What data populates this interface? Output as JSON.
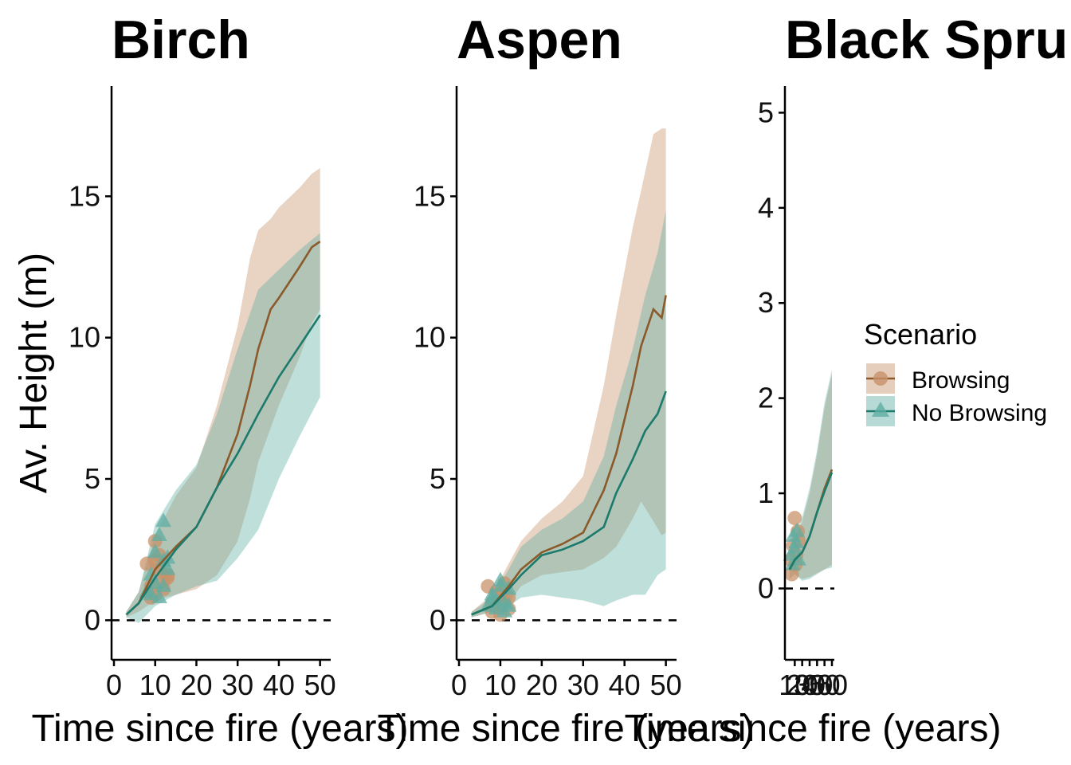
{
  "colors": {
    "browsing": "#8B5A2B",
    "browsing_fill": "#C8926A",
    "no_browsing": "#1B7A6B",
    "no_browsing_fill": "#5FAEA3"
  },
  "y_axis_title": "Av. Height (m)",
  "legend": {
    "title": "Scenario",
    "items": [
      {
        "label": "Browsing",
        "series": "browsing",
        "marker": "circle"
      },
      {
        "label": "No Browsing",
        "series": "no_browsing",
        "marker": "triangle"
      }
    ]
  },
  "chart_data": [
    {
      "type": "line",
      "title": "Birch",
      "xlabel": "Time since fire (years)",
      "ylabel": "Av. Height (m)",
      "xlim": [
        0,
        52
      ],
      "ylim": [
        -1.4,
        18.9
      ],
      "xticks": [
        0,
        10,
        20,
        30,
        40,
        50
      ],
      "yticks": [
        0,
        5,
        10,
        15
      ],
      "reference_line": 0,
      "series": [
        {
          "name": "Browsing",
          "x": [
            3,
            6,
            10,
            15,
            20,
            25,
            30,
            33,
            35,
            38,
            40,
            45,
            48,
            50
          ],
          "y": [
            0.2,
            0.6,
            1.8,
            2.6,
            3.3,
            4.7,
            6.6,
            8.3,
            9.6,
            11.0,
            11.4,
            12.5,
            13.2,
            13.4
          ],
          "lower": [
            0.1,
            0.3,
            0.7,
            0.9,
            1.1,
            1.6,
            2.8,
            4.3,
            5.6,
            6.8,
            7.6,
            9.3,
            10.5,
            11.0
          ],
          "upper": [
            0.3,
            1.0,
            3.0,
            4.4,
            5.4,
            7.6,
            10.4,
            12.8,
            13.8,
            14.2,
            14.6,
            15.3,
            15.8,
            16.0
          ]
        },
        {
          "name": "No Browsing",
          "x": [
            3,
            6,
            10,
            15,
            20,
            25,
            30,
            35,
            40,
            45,
            50
          ],
          "y": [
            0.2,
            0.6,
            1.5,
            2.5,
            3.3,
            4.7,
            5.9,
            7.3,
            8.6,
            9.7,
            10.8
          ],
          "lower": [
            0.1,
            -0.1,
            0.5,
            0.9,
            1.2,
            1.4,
            2.2,
            3.2,
            5.0,
            6.5,
            7.9
          ],
          "upper": [
            0.3,
            1.0,
            3.4,
            4.6,
            5.5,
            7.3,
            9.6,
            11.7,
            12.4,
            13.1,
            13.7
          ]
        }
      ],
      "scatter": [
        {
          "series": "Browsing",
          "x": [
            8,
            9,
            10,
            10,
            11,
            11,
            12,
            13,
            9,
            12,
            10,
            13
          ],
          "y": [
            2.0,
            1.2,
            2.8,
            0.9,
            1.8,
            2.3,
            1.4,
            1.6,
            0.8,
            1.1,
            2.1,
            1.5
          ]
        },
        {
          "series": "No Browsing",
          "x": [
            8,
            9,
            10,
            11,
            12,
            12,
            13,
            13,
            9,
            10,
            11,
            12
          ],
          "y": [
            1.0,
            1.6,
            2.4,
            3.0,
            3.5,
            2.1,
            1.8,
            2.2,
            0.9,
            1.3,
            0.8,
            1.2
          ]
        }
      ]
    },
    {
      "type": "line",
      "title": "Aspen",
      "xlabel": "Time since fire (years)",
      "xlim": [
        0,
        52
      ],
      "ylim": [
        -1.4,
        18.9
      ],
      "xticks": [
        0,
        10,
        20,
        30,
        40,
        50
      ],
      "yticks": [
        0,
        5,
        10,
        15
      ],
      "reference_line": 0,
      "series": [
        {
          "name": "Browsing",
          "x": [
            3,
            8,
            12,
            15,
            20,
            25,
            30,
            35,
            38,
            42,
            44,
            47,
            49,
            50
          ],
          "y": [
            0.2,
            0.5,
            1.2,
            1.8,
            2.4,
            2.7,
            3.1,
            4.6,
            5.9,
            8.3,
            9.7,
            11.0,
            10.7,
            11.5
          ],
          "lower": [
            0.1,
            0.3,
            0.6,
            1.2,
            1.6,
            1.7,
            1.8,
            2.2,
            2.6,
            3.6,
            4.2,
            3.5,
            3.0,
            3.1
          ],
          "upper": [
            0.3,
            0.9,
            2.0,
            2.8,
            3.6,
            4.2,
            5.1,
            8.3,
            10.8,
            13.9,
            15.2,
            17.2,
            17.4,
            17.4
          ]
        },
        {
          "name": "No Browsing",
          "x": [
            3,
            8,
            12,
            15,
            20,
            25,
            30,
            35,
            38,
            42,
            45,
            48,
            50
          ],
          "y": [
            0.2,
            0.5,
            1.1,
            1.6,
            2.3,
            2.5,
            2.8,
            3.3,
            4.5,
            5.7,
            6.7,
            7.3,
            8.1
          ],
          "lower": [
            0.1,
            0.3,
            0.5,
            0.8,
            0.9,
            0.8,
            0.7,
            0.5,
            0.7,
            0.9,
            0.9,
            1.6,
            1.8
          ],
          "upper": [
            0.3,
            0.8,
            1.8,
            2.6,
            3.2,
            3.6,
            4.2,
            5.8,
            7.6,
            9.6,
            11.5,
            13.0,
            14.5
          ]
        }
      ],
      "scatter": [
        {
          "series": "Browsing",
          "x": [
            7,
            8,
            9,
            10,
            11,
            12,
            9,
            10,
            11,
            8,
            12
          ],
          "y": [
            1.2,
            0.3,
            0.5,
            0.9,
            0.7,
            0.4,
            1.0,
            0.2,
            1.3,
            0.6,
            0.8
          ]
        },
        {
          "series": "No Browsing",
          "x": [
            7,
            8,
            9,
            10,
            11,
            12,
            9,
            10,
            11,
            8,
            12
          ],
          "y": [
            0.5,
            0.9,
            0.4,
            1.4,
            0.6,
            1.1,
            0.7,
            1.2,
            0.3,
            0.8,
            0.5
          ]
        }
      ]
    },
    {
      "type": "line",
      "title": "Black Spru",
      "xlabel": "Time since fire (years)",
      "xlim": [
        0,
        60
      ],
      "ylim": [
        -0.75,
        5.28
      ],
      "xticks": [
        10,
        20,
        30,
        40,
        50,
        60
      ],
      "xtick_labels_visible": "102030405060",
      "yticks": [
        0,
        1,
        2,
        3,
        4,
        5
      ],
      "reference_line": 0,
      "series": [
        {
          "name": "Browsing",
          "x": [
            3,
            10,
            20,
            30,
            40,
            50,
            60
          ],
          "y": [
            0.2,
            0.3,
            0.38,
            0.55,
            0.8,
            1.05,
            1.25
          ],
          "lower": [
            0.1,
            0.15,
            0.1,
            0.12,
            0.16,
            0.2,
            0.25
          ],
          "upper": [
            0.3,
            0.5,
            0.7,
            1.0,
            1.4,
            1.9,
            2.25
          ]
        },
        {
          "name": "No Browsing",
          "x": [
            3,
            10,
            20,
            30,
            40,
            50,
            60
          ],
          "y": [
            0.2,
            0.3,
            0.38,
            0.55,
            0.8,
            1.02,
            1.22
          ],
          "lower": [
            0.1,
            0.15,
            0.08,
            0.1,
            0.15,
            0.2,
            0.22
          ],
          "upper": [
            0.3,
            0.5,
            0.75,
            1.05,
            1.45,
            1.95,
            2.3
          ]
        }
      ],
      "scatter": [
        {
          "series": "Browsing",
          "x": [
            5,
            8,
            10,
            12,
            15,
            6,
            11,
            14
          ],
          "y": [
            0.3,
            0.45,
            0.74,
            0.35,
            0.5,
            0.15,
            0.25,
            0.6
          ]
        },
        {
          "series": "No Browsing",
          "x": [
            5,
            8,
            10,
            12,
            15,
            7,
            13
          ],
          "y": [
            0.35,
            0.55,
            0.42,
            0.48,
            0.3,
            0.25,
            0.6
          ]
        }
      ]
    }
  ]
}
